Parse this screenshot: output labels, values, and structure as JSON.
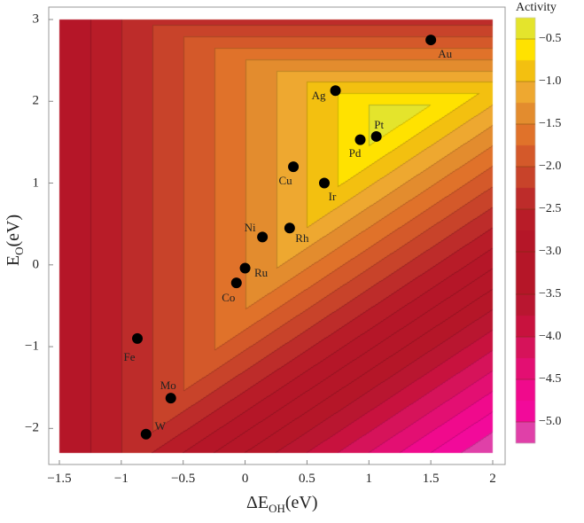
{
  "chart_data": {
    "type": "contour-scatter",
    "xlabel": {
      "main": "ΔE",
      "sub": "OH",
      "unit": "(eV)"
    },
    "ylabel": {
      "main": "E",
      "sub": "O",
      "unit": "(eV)"
    },
    "xlim": [
      -1.5,
      2.0
    ],
    "ylim": [
      -2.3,
      3.0
    ],
    "xticks": [
      "-1.5",
      "-1",
      "-0.5",
      "0",
      "0.5",
      "1",
      "1.5",
      "2"
    ],
    "yticks": [
      "3",
      "2",
      "1",
      "0",
      "-1",
      "-2"
    ],
    "colorbar": {
      "title": "Activity",
      "ticks": [
        "-0.5",
        "-1.0",
        "-1.5",
        "-2.0",
        "-2.5",
        "-3.0",
        "-3.5",
        "-4.0",
        "-4.5",
        "-5.0"
      ],
      "range": [
        -5.25,
        -0.25
      ],
      "step": 0.25,
      "colors": [
        "#e4e42c",
        "#ffe200",
        "#f3c010",
        "#eea830",
        "#e38c2e",
        "#e0722a",
        "#d4592a",
        "#c8432a",
        "#bd2c2a",
        "#b81c28",
        "#b51628",
        "#b51628",
        "#b51628",
        "#b91630",
        "#c8123e",
        "#d6135a",
        "#e30f72",
        "#f00a8c",
        "#f20a9a",
        "#e040a8"
      ]
    },
    "points": [
      {
        "label": "Au",
        "x": 1.5,
        "y": 2.75
      },
      {
        "label": "Ag",
        "x": 0.73,
        "y": 2.13
      },
      {
        "label": "Pt",
        "x": 1.06,
        "y": 1.57
      },
      {
        "label": "Pd",
        "x": 0.93,
        "y": 1.53
      },
      {
        "label": "Cu",
        "x": 0.39,
        "y": 1.2
      },
      {
        "label": "Ir",
        "x": 0.64,
        "y": 1.0
      },
      {
        "label": "Rh",
        "x": 0.36,
        "y": 0.45
      },
      {
        "label": "Ni",
        "x": 0.14,
        "y": 0.34
      },
      {
        "label": "Ru",
        "x": 0.0,
        "y": -0.04
      },
      {
        "label": "Co",
        "x": -0.07,
        "y": -0.22
      },
      {
        "label": "Fe",
        "x": -0.87,
        "y": -0.9
      },
      {
        "label": "Mo",
        "x": -0.6,
        "y": -1.63
      },
      {
        "label": "W",
        "x": -0.8,
        "y": -2.07
      }
    ]
  }
}
